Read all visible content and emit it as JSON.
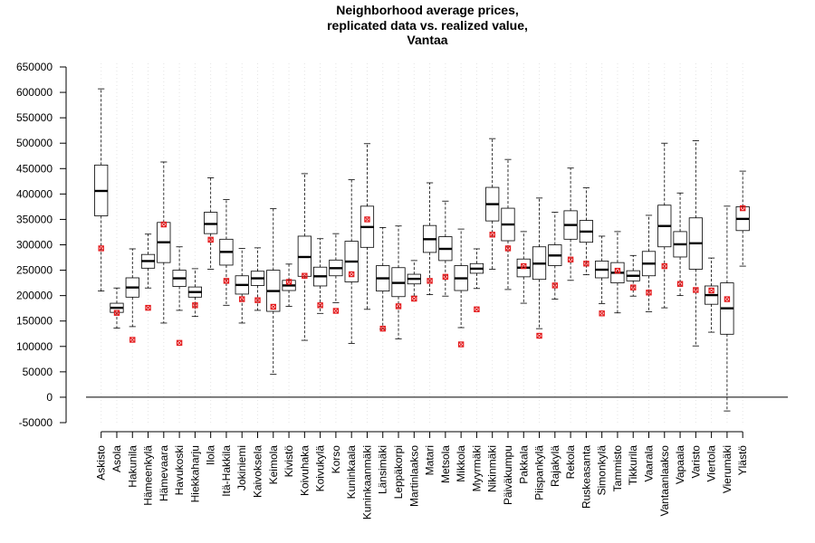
{
  "chart_data": {
    "type": "boxplot",
    "title_lines": [
      "Neighborhood average prices,",
      "replicated data vs. realized value,",
      "Vantaa"
    ],
    "xlabel": "",
    "ylabel": "",
    "ylim": [
      -50000,
      650000
    ],
    "yticks": [
      -50000,
      0,
      50000,
      100000,
      150000,
      200000,
      250000,
      300000,
      350000,
      400000,
      450000,
      500000,
      550000,
      600000,
      650000
    ],
    "reference_line": 0,
    "grid": "vertical dotted per category",
    "legend": "none",
    "box_color": "#000000",
    "realized_marker_color": "#e41a1c",
    "categories": [
      "Askisto",
      "Asola",
      "Hakunila",
      "Hämeenkylä",
      "Hämevaara",
      "Havukoski",
      "Hiekkaharju",
      "Ilola",
      "Itä-Hakkila",
      "Jokiniemi",
      "Kaivoksela",
      "Keimola",
      "Kivistö",
      "Koivuhaka",
      "Koivukylä",
      "Korso",
      "Kuninkaala",
      "Kuninkaanmäki",
      "Länsimäki",
      "Leppäkorpi",
      "Martinlaakso",
      "Matari",
      "Metsola",
      "Mikkola",
      "Myyrmäki",
      "Nikinmäki",
      "Päiväkumpu",
      "Pakkala",
      "Piispankylä",
      "Rajakylä",
      "Rekola",
      "Ruskeasanta",
      "Simonkylä",
      "Tammisto",
      "Tikkurila",
      "Vaarala",
      "Vantaanlaakso",
      "Vapaala",
      "Varisto",
      "Viertola",
      "Vierumäki",
      "Ylästö"
    ],
    "boxes": [
      {
        "whisker_low": 209000,
        "q1": 357000,
        "median": 406000,
        "q3": 457000,
        "whisker_high": 607000,
        "realized": 293000
      },
      {
        "whisker_low": 136000,
        "q1": 167000,
        "median": 176000,
        "q3": 185000,
        "whisker_high": 215000,
        "realized": 166000
      },
      {
        "whisker_low": 139000,
        "q1": 197000,
        "median": 216000,
        "q3": 235000,
        "whisker_high": 292000,
        "realized": 113000
      },
      {
        "whisker_low": 215000,
        "q1": 254000,
        "median": 268000,
        "q3": 281000,
        "whisker_high": 321000,
        "realized": 176000
      },
      {
        "whisker_low": 146000,
        "q1": 265000,
        "median": 305000,
        "q3": 344000,
        "whisker_high": 463000,
        "realized": 340000
      },
      {
        "whisker_low": 171000,
        "q1": 218000,
        "median": 234000,
        "q3": 250000,
        "whisker_high": 296000,
        "realized": 107000
      },
      {
        "whisker_low": 159000,
        "q1": 197000,
        "median": 207000,
        "q3": 217000,
        "whisker_high": 253000,
        "realized": 181000
      },
      {
        "whisker_low": 252000,
        "q1": 322000,
        "median": 341000,
        "q3": 364000,
        "whisker_high": 432000,
        "realized": 310000
      },
      {
        "whisker_low": 181000,
        "q1": 260000,
        "median": 286000,
        "q3": 311000,
        "whisker_high": 389000,
        "realized": 229000
      },
      {
        "whisker_low": 146000,
        "q1": 203000,
        "median": 221000,
        "q3": 239000,
        "whisker_high": 293000,
        "realized": 193000
      },
      {
        "whisker_low": 171000,
        "q1": 220000,
        "median": 234000,
        "q3": 248000,
        "whisker_high": 294000,
        "realized": 191000
      },
      {
        "whisker_low": 45000,
        "q1": 169000,
        "median": 209000,
        "q3": 250000,
        "whisker_high": 371000,
        "realized": 178000
      },
      {
        "whisker_low": 179000,
        "q1": 210000,
        "median": 220000,
        "q3": 230000,
        "whisker_high": 262000,
        "realized": 227000
      },
      {
        "whisker_low": 112000,
        "q1": 238000,
        "median": 276000,
        "q3": 317000,
        "whisker_high": 440000,
        "realized": 239000
      },
      {
        "whisker_low": 165000,
        "q1": 219000,
        "median": 238000,
        "q3": 256000,
        "whisker_high": 312000,
        "realized": 181000
      },
      {
        "whisker_low": 186000,
        "q1": 239000,
        "median": 254000,
        "q3": 270000,
        "whisker_high": 322000,
        "realized": 170000
      },
      {
        "whisker_low": 106000,
        "q1": 227000,
        "median": 267000,
        "q3": 307000,
        "whisker_high": 428000,
        "realized": 242000
      },
      {
        "whisker_low": 173000,
        "q1": 295000,
        "median": 335000,
        "q3": 376000,
        "whisker_high": 499000,
        "realized": 350000
      },
      {
        "whisker_low": 134000,
        "q1": 209000,
        "median": 234000,
        "q3": 259000,
        "whisker_high": 334000,
        "realized": 135000
      },
      {
        "whisker_low": 115000,
        "q1": 198000,
        "median": 225000,
        "q3": 255000,
        "whisker_high": 337000,
        "realized": 179000
      },
      {
        "whisker_low": 199000,
        "q1": 223000,
        "median": 233000,
        "q3": 242000,
        "whisker_high": 269000,
        "realized": 194000
      },
      {
        "whisker_low": 202000,
        "q1": 285000,
        "median": 311000,
        "q3": 338000,
        "whisker_high": 422000,
        "realized": 229000
      },
      {
        "whisker_low": 199000,
        "q1": 269000,
        "median": 292000,
        "q3": 316000,
        "whisker_high": 386000,
        "realized": 237000
      },
      {
        "whisker_low": 137000,
        "q1": 210000,
        "median": 234000,
        "q3": 259000,
        "whisker_high": 331000,
        "realized": 104000
      },
      {
        "whisker_low": 214000,
        "q1": 244000,
        "median": 253000,
        "q3": 263000,
        "whisker_high": 292000,
        "realized": 173000
      },
      {
        "whisker_low": 252000,
        "q1": 347000,
        "median": 380000,
        "q3": 413000,
        "whisker_high": 509000,
        "realized": 320000
      },
      {
        "whisker_low": 212000,
        "q1": 308000,
        "median": 340000,
        "q3": 372000,
        "whisker_high": 468000,
        "realized": 293000
      },
      {
        "whisker_low": 185000,
        "q1": 237000,
        "median": 255000,
        "q3": 272000,
        "whisker_high": 326000,
        "realized": 258000
      },
      {
        "whisker_low": 135000,
        "q1": 232000,
        "median": 263000,
        "q3": 296000,
        "whisker_high": 392000,
        "realized": 121000
      },
      {
        "whisker_low": 193000,
        "q1": 259000,
        "median": 279000,
        "q3": 300000,
        "whisker_high": 364000,
        "realized": 220000
      },
      {
        "whisker_low": 230000,
        "q1": 311000,
        "median": 339000,
        "q3": 367000,
        "whisker_high": 451000,
        "realized": 271000
      },
      {
        "whisker_low": 241000,
        "q1": 305000,
        "median": 326000,
        "q3": 348000,
        "whisker_high": 412000,
        "realized": 263000
      },
      {
        "whisker_low": 184000,
        "q1": 235000,
        "median": 251000,
        "q3": 268000,
        "whisker_high": 317000,
        "realized": 165000
      },
      {
        "whisker_low": 166000,
        "q1": 225000,
        "median": 245000,
        "q3": 265000,
        "whisker_high": 326000,
        "realized": 249000
      },
      {
        "whisker_low": 199000,
        "q1": 229000,
        "median": 239000,
        "q3": 249000,
        "whisker_high": 279000,
        "realized": 216000
      },
      {
        "whisker_low": 168000,
        "q1": 239000,
        "median": 263000,
        "q3": 287000,
        "whisker_high": 358000,
        "realized": 206000
      },
      {
        "whisker_low": 176000,
        "q1": 296000,
        "median": 337000,
        "q3": 378000,
        "whisker_high": 500000,
        "realized": 258000
      },
      {
        "whisker_low": 200000,
        "q1": 276000,
        "median": 301000,
        "q3": 326000,
        "whisker_high": 402000,
        "realized": 223000
      },
      {
        "whisker_low": 101000,
        "q1": 252000,
        "median": 303000,
        "q3": 353000,
        "whisker_high": 505000,
        "realized": 211000
      },
      {
        "whisker_low": 128000,
        "q1": 183000,
        "median": 201000,
        "q3": 219000,
        "whisker_high": 274000,
        "realized": 210000
      },
      {
        "whisker_low": -27000,
        "q1": 124000,
        "median": 175000,
        "q3": 225000,
        "whisker_high": 376000,
        "realized": 193000
      },
      {
        "whisker_low": 258000,
        "q1": 328000,
        "median": 351000,
        "q3": 375000,
        "whisker_high": 445000,
        "realized": 372000
      }
    ]
  }
}
